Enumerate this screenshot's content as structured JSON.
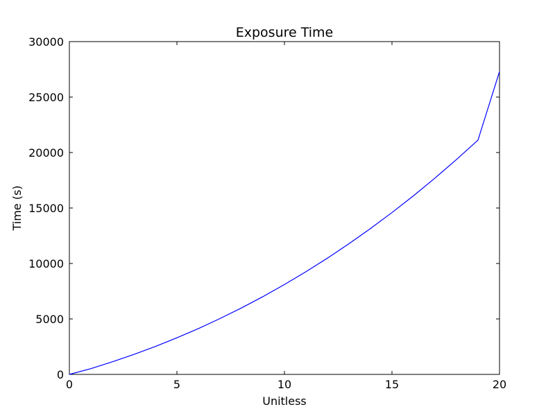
{
  "chart_data": {
    "type": "line",
    "title": "Exposure Time",
    "xlabel": "Unitless",
    "ylabel": "Time (s)",
    "xlim": [
      0,
      20
    ],
    "ylim": [
      0,
      30000
    ],
    "xticks": [
      0,
      5,
      10,
      15,
      20
    ],
    "yticks": [
      0,
      5000,
      10000,
      15000,
      20000,
      25000,
      30000
    ],
    "xtick_labels": [
      "0",
      "5",
      "10",
      "15",
      "20"
    ],
    "ytick_labels": [
      "0",
      "5000",
      "10000",
      "15000",
      "20000",
      "25000",
      "30000"
    ],
    "grid": false,
    "legend": false,
    "series": [
      {
        "color": "#0000ff",
        "x": [
          0,
          1,
          2,
          3,
          4,
          5,
          6,
          7,
          8,
          9,
          10,
          11,
          12,
          13,
          14,
          15,
          16,
          17,
          18,
          19,
          20
        ],
        "y": [
          0,
          520,
          1140,
          1800,
          2520,
          3300,
          4130,
          5030,
          5990,
          7010,
          8100,
          9260,
          10480,
          11780,
          13150,
          14590,
          16100,
          17700,
          19370,
          21120,
          27300
        ]
      }
    ]
  }
}
